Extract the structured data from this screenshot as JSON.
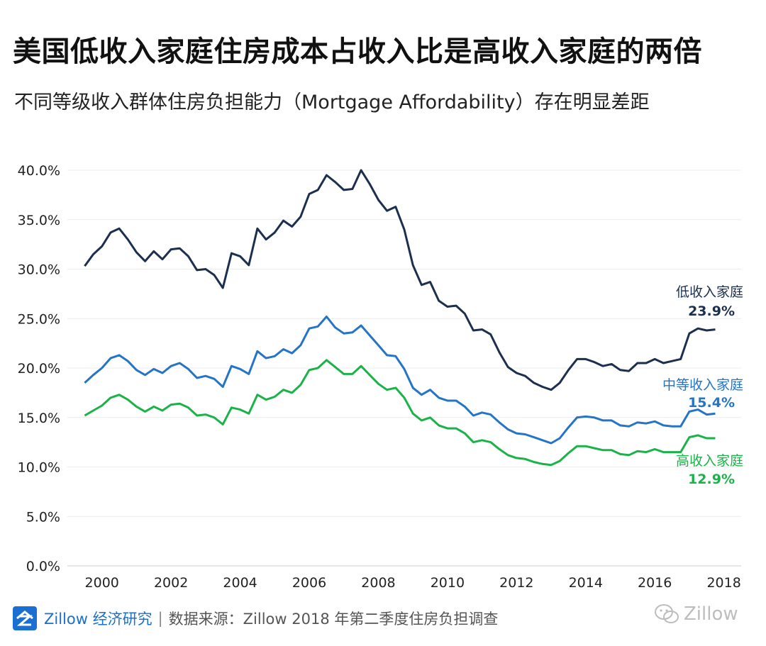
{
  "title": "美国低收入家庭住房成本占收入比是高收入家庭的两倍",
  "subtitle": "不同等级收入群体住房负担能力（Mortgage Affordability）存在明显差距",
  "footer": {
    "brand": "Zillow 经济研究",
    "separator": "|",
    "source": "数据来源：Zillow 2018 年第二季度住房负担调查",
    "logo_icon": "zillow-logo-icon"
  },
  "watermark": {
    "text": "Zillow",
    "icon": "wechat-icon"
  },
  "chart_data": {
    "type": "line",
    "y_ticks": [
      "0.0%",
      "5.0%",
      "10.0%",
      "15.0%",
      "20.0%",
      "25.0%",
      "30.0%",
      "35.0%",
      "40.0%"
    ],
    "ylim": [
      0,
      40
    ],
    "x_ticks": [
      "2000",
      "2002",
      "2004",
      "2006",
      "2008",
      "2010",
      "2012",
      "2014",
      "2016",
      "2018"
    ],
    "xlim": [
      1999.0,
      2018.5
    ],
    "grid": "horizontal",
    "x": [
      1999.5,
      1999.75,
      2000.0,
      2000.25,
      2000.5,
      2000.75,
      2001.0,
      2001.25,
      2001.5,
      2001.75,
      2002.0,
      2002.25,
      2002.5,
      2002.75,
      2003.0,
      2003.25,
      2003.5,
      2003.75,
      2004.0,
      2004.25,
      2004.5,
      2004.75,
      2005.0,
      2005.25,
      2005.5,
      2005.75,
      2006.0,
      2006.25,
      2006.5,
      2006.75,
      2007.0,
      2007.25,
      2007.5,
      2007.75,
      2008.0,
      2008.25,
      2008.5,
      2008.75,
      2009.0,
      2009.25,
      2009.5,
      2009.75,
      2010.0,
      2010.25,
      2010.5,
      2010.75,
      2011.0,
      2011.25,
      2011.5,
      2011.75,
      2012.0,
      2012.25,
      2012.5,
      2012.75,
      2013.0,
      2013.25,
      2013.5,
      2013.75,
      2014.0,
      2014.25,
      2014.5,
      2014.75,
      2015.0,
      2015.25,
      2015.5,
      2015.75,
      2016.0,
      2016.25,
      2016.5,
      2016.75,
      2017.0,
      2017.25,
      2017.5,
      2017.75
    ],
    "series": [
      {
        "name": "低收入家庭",
        "end_label": "23.9%",
        "color": "#1d2f4f",
        "values": [
          30.3,
          31.5,
          32.3,
          33.7,
          34.1,
          33.0,
          31.7,
          30.8,
          31.8,
          31.0,
          32.0,
          32.1,
          31.3,
          29.9,
          30.0,
          29.4,
          28.1,
          31.6,
          31.3,
          30.4,
          34.1,
          33.0,
          33.7,
          34.9,
          34.3,
          35.3,
          37.6,
          38.0,
          39.5,
          38.8,
          38.0,
          38.1,
          40.0,
          38.6,
          37.0,
          35.9,
          36.3,
          34.0,
          30.4,
          28.4,
          28.7,
          26.8,
          26.2,
          26.3,
          25.5,
          23.8,
          23.9,
          23.4,
          21.6,
          20.1,
          19.5,
          19.2,
          18.5,
          18.1,
          17.8,
          18.5,
          19.8,
          20.9,
          20.9,
          20.6,
          20.2,
          20.4,
          19.8,
          19.7,
          20.5,
          20.5,
          20.9,
          20.5,
          20.7,
          20.9,
          23.5,
          24.0,
          23.8,
          23.9
        ],
        "end_value": 23.9
      },
      {
        "name": "中等收入家庭",
        "end_label": "15.4%",
        "color": "#2474c8",
        "values": [
          18.5,
          19.3,
          20.0,
          21.0,
          21.3,
          20.7,
          19.8,
          19.3,
          19.9,
          19.5,
          20.2,
          20.5,
          19.9,
          19.0,
          19.2,
          18.9,
          18.1,
          20.2,
          19.9,
          19.4,
          21.7,
          21.0,
          21.2,
          21.9,
          21.5,
          22.3,
          24.0,
          24.2,
          25.2,
          24.1,
          23.5,
          23.6,
          24.3,
          23.3,
          22.3,
          21.3,
          21.2,
          19.9,
          18.0,
          17.3,
          17.8,
          17.0,
          16.7,
          16.7,
          16.1,
          15.2,
          15.5,
          15.3,
          14.5,
          13.8,
          13.4,
          13.3,
          13.0,
          12.7,
          12.4,
          12.9,
          14.0,
          15.0,
          15.1,
          15.0,
          14.7,
          14.7,
          14.2,
          14.1,
          14.5,
          14.4,
          14.6,
          14.2,
          14.1,
          14.1,
          15.6,
          15.8,
          15.3,
          15.4
        ],
        "end_value": 15.4
      },
      {
        "name": "高收入家庭",
        "end_label": "12.9%",
        "color": "#1bb349",
        "values": [
          15.2,
          15.7,
          16.2,
          17.0,
          17.3,
          16.8,
          16.1,
          15.6,
          16.1,
          15.7,
          16.3,
          16.4,
          16.0,
          15.2,
          15.3,
          15.0,
          14.3,
          16.0,
          15.8,
          15.4,
          17.3,
          16.8,
          17.1,
          17.8,
          17.5,
          18.3,
          19.8,
          20.0,
          20.8,
          20.1,
          19.4,
          19.4,
          20.2,
          19.3,
          18.4,
          17.8,
          18.0,
          17.0,
          15.4,
          14.7,
          15.0,
          14.2,
          13.9,
          13.9,
          13.4,
          12.5,
          12.7,
          12.5,
          11.8,
          11.2,
          10.9,
          10.8,
          10.5,
          10.3,
          10.2,
          10.6,
          11.4,
          12.1,
          12.1,
          11.9,
          11.7,
          11.7,
          11.3,
          11.2,
          11.6,
          11.5,
          11.8,
          11.5,
          11.5,
          11.5,
          13.0,
          13.2,
          12.9,
          12.9
        ],
        "end_value": 12.9
      }
    ]
  }
}
